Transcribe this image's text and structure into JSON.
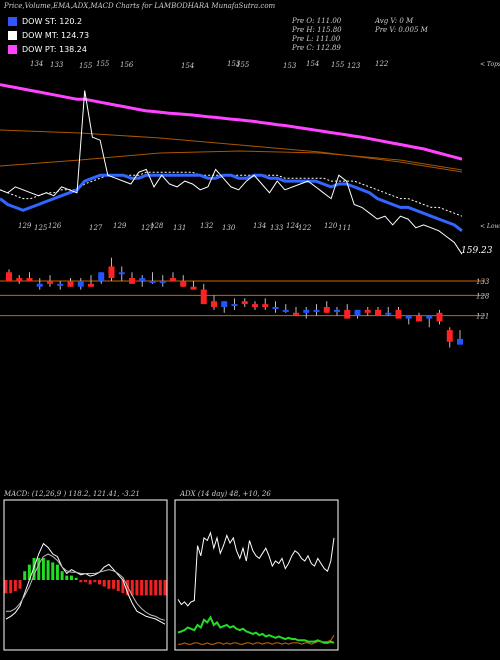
{
  "header": {
    "title": "Price,Volume,EMA,ADX,MACD Charts for LAMBODHARA MunafaSutra.com"
  },
  "legend": [
    {
      "label": "DOW ST: 120.2",
      "color": "#3355ff"
    },
    {
      "label": "DOW MT: 124.73",
      "color": "#ffffff"
    },
    {
      "label": "DOW PT: 138.24",
      "color": "#ff44ff"
    }
  ],
  "ohlc_info": {
    "open": "Pre  O: 111.00",
    "high": "Pre  H: 115.80",
    "low": "Pre  L: 111.00",
    "close": "Pre  C: 112.89",
    "avg_vol": "Avg V: 0  M",
    "pre_vol": "Pre  V: 0.005 M"
  },
  "colors": {
    "up": "#2255ff",
    "down": "#ff2222",
    "level_line": "#cc6600",
    "ema_pt": "#ff44ff",
    "ema_mt": "#ffffff",
    "ema_st": "#3366ff",
    "macd_green": "#22dd22",
    "macd_red": "#ee2222",
    "adx_green": "#22dd22",
    "adx_orange": "#cc6600"
  },
  "chart_data": [
    {
      "type": "line",
      "name": "price-ema-panel",
      "corner_labels": {
        "top": "< Tops",
        "bottom": "< Lows"
      },
      "top_labels": [
        "134",
        "133",
        "155",
        "155",
        "156",
        "154",
        "153",
        "155",
        "153",
        "154",
        "155",
        "123",
        "122"
      ],
      "bottom_labels": [
        "129",
        "125",
        "126",
        "127",
        "129",
        "127",
        "128",
        "131",
        "132",
        "130",
        "134",
        "133",
        "124",
        "122",
        "120",
        "111"
      ],
      "series": [
        {
          "name": "price",
          "values": [
            134,
            133,
            135,
            134,
            133,
            132,
            133,
            132,
            135,
            134,
            133,
            168,
            152,
            151,
            139,
            138,
            137,
            136,
            140,
            141,
            135,
            139,
            136,
            135,
            137,
            136,
            134,
            135,
            141,
            138,
            135,
            134,
            137,
            139,
            136,
            133,
            137,
            134,
            135,
            136,
            137,
            135,
            133,
            131,
            139,
            137,
            129,
            128,
            126,
            124,
            125,
            122,
            125,
            124,
            121,
            122,
            121,
            120,
            118,
            116,
            112
          ]
        },
        {
          "name": "ema_st",
          "values": [
            131,
            129,
            128,
            127,
            128,
            129,
            130,
            131,
            132,
            133,
            134,
            137,
            138,
            139,
            139,
            139,
            139,
            138,
            138,
            139,
            139,
            139,
            139,
            139,
            139,
            139,
            139,
            138,
            138,
            139,
            139,
            138,
            138,
            139,
            139,
            138,
            138,
            137,
            137,
            137,
            137,
            137,
            136,
            135,
            136,
            136,
            135,
            134,
            133,
            131,
            130,
            129,
            128,
            128,
            127,
            126,
            125,
            124,
            123,
            122,
            120
          ]
        },
        {
          "name": "ema_mt",
          "values": [
            134,
            133,
            132,
            131,
            131,
            132,
            133,
            133,
            134,
            134,
            134,
            136,
            137,
            138,
            139,
            139,
            139,
            139,
            139,
            140,
            140,
            140,
            140,
            140,
            140,
            140,
            139,
            139,
            139,
            139,
            139,
            139,
            139,
            139,
            139,
            139,
            139,
            138,
            138,
            138,
            138,
            138,
            138,
            137,
            137,
            137,
            137,
            136,
            135,
            134,
            133,
            132,
            131,
            131,
            130,
            129,
            128,
            128,
            127,
            126,
            125
          ]
        },
        {
          "name": "ema_pt",
          "values": [
            170,
            169.5,
            169,
            168.5,
            168,
            167.5,
            167,
            166.5,
            166,
            165.5,
            165,
            165,
            164.5,
            164,
            163.5,
            163,
            162.5,
            162,
            161.5,
            161,
            160.8,
            160.5,
            160.2,
            160,
            159.8,
            159.6,
            159.3,
            159,
            158.8,
            158.5,
            158.2,
            158,
            157.7,
            157.4,
            157,
            156.7,
            156.3,
            156,
            155.6,
            155.2,
            154.8,
            154.4,
            154,
            153.6,
            153.2,
            152.8,
            152.4,
            152,
            151.5,
            151,
            150.5,
            150,
            149.5,
            149,
            148.5,
            148,
            147.3,
            146.6,
            145.9,
            145.2,
            144.5
          ]
        }
      ],
      "current_value": "159.23",
      "ylim": [
        110,
        175
      ]
    },
    {
      "type": "candlestick",
      "name": "daily-candles",
      "level_labels": [
        "133",
        "128",
        "121"
      ],
      "candles": [
        {
          "o": 136,
          "h": 137,
          "l": 133,
          "c": 133
        },
        {
          "o": 134,
          "h": 135,
          "l": 132,
          "c": 133
        },
        {
          "o": 134,
          "h": 136,
          "l": 133,
          "c": 133
        },
        {
          "o": 131,
          "h": 134,
          "l": 130,
          "c": 132
        },
        {
          "o": 133,
          "h": 135,
          "l": 131,
          "c": 132
        },
        {
          "o": 132,
          "h": 133,
          "l": 130,
          "c": 132
        },
        {
          "o": 133,
          "h": 134,
          "l": 131,
          "c": 131
        },
        {
          "o": 131,
          "h": 134,
          "l": 130,
          "c": 133
        },
        {
          "o": 132,
          "h": 135,
          "l": 131,
          "c": 131
        },
        {
          "o": 133,
          "h": 136,
          "l": 132,
          "c": 136
        },
        {
          "o": 138,
          "h": 141,
          "l": 133,
          "c": 134
        },
        {
          "o": 136,
          "h": 138,
          "l": 133,
          "c": 136
        },
        {
          "o": 134,
          "h": 136,
          "l": 132,
          "c": 132
        },
        {
          "o": 133,
          "h": 135,
          "l": 131,
          "c": 134
        },
        {
          "o": 133,
          "h": 136,
          "l": 132,
          "c": 133
        },
        {
          "o": 133,
          "h": 135,
          "l": 131,
          "c": 133
        },
        {
          "o": 134,
          "h": 136,
          "l": 133,
          "c": 133
        },
        {
          "o": 133,
          "h": 135,
          "l": 131,
          "c": 131
        },
        {
          "o": 131,
          "h": 133,
          "l": 130,
          "c": 130
        },
        {
          "o": 130,
          "h": 132,
          "l": 125,
          "c": 125
        },
        {
          "o": 126,
          "h": 128,
          "l": 123,
          "c": 124
        },
        {
          "o": 124,
          "h": 126,
          "l": 122,
          "c": 126
        },
        {
          "o": 125,
          "h": 127,
          "l": 123,
          "c": 125
        },
        {
          "o": 126,
          "h": 127,
          "l": 124,
          "c": 125
        },
        {
          "o": 125,
          "h": 126,
          "l": 123,
          "c": 124
        },
        {
          "o": 125,
          "h": 127,
          "l": 123,
          "c": 124
        },
        {
          "o": 124,
          "h": 126,
          "l": 122,
          "c": 124
        },
        {
          "o": 123,
          "h": 125,
          "l": 122,
          "c": 123
        },
        {
          "o": 122,
          "h": 124,
          "l": 121,
          "c": 121
        },
        {
          "o": 122,
          "h": 124,
          "l": 120,
          "c": 123
        },
        {
          "o": 123,
          "h": 125,
          "l": 121,
          "c": 123
        },
        {
          "o": 124,
          "h": 126,
          "l": 122,
          "c": 122
        },
        {
          "o": 123,
          "h": 124,
          "l": 121,
          "c": 123
        },
        {
          "o": 123,
          "h": 125,
          "l": 120,
          "c": 120
        },
        {
          "o": 121,
          "h": 123,
          "l": 120,
          "c": 123
        },
        {
          "o": 123,
          "h": 124,
          "l": 121,
          "c": 122
        },
        {
          "o": 123,
          "h": 124,
          "l": 121,
          "c": 121
        },
        {
          "o": 122,
          "h": 124,
          "l": 121,
          "c": 122
        },
        {
          "o": 123,
          "h": 124,
          "l": 120,
          "c": 120
        },
        {
          "o": 120,
          "h": 121,
          "l": 118,
          "c": 121
        },
        {
          "o": 121,
          "h": 122,
          "l": 119,
          "c": 119
        },
        {
          "o": 120,
          "h": 121,
          "l": 117,
          "c": 121
        },
        {
          "o": 122,
          "h": 123,
          "l": 118,
          "c": 119
        },
        {
          "o": 116,
          "h": 117,
          "l": 110,
          "c": 112
        },
        {
          "o": 111,
          "h": 116,
          "l": 111,
          "c": 113
        }
      ],
      "ylim": [
        105,
        143
      ]
    },
    {
      "type": "line",
      "name": "macd-panel",
      "title": "MACD: (12,26,9 ) 118.2,  121.41,  -3.21",
      "series": [
        {
          "name": "macd",
          "values": [
            -30,
            -28,
            -25,
            -20,
            -10,
            0,
            10,
            20,
            28,
            25,
            20,
            18,
            10,
            5,
            8,
            6,
            4,
            5,
            3,
            4,
            6,
            10,
            12,
            8,
            4,
            0,
            -10,
            -18,
            -24,
            -26,
            -28,
            -29,
            -30,
            -32,
            -34
          ]
        },
        {
          "name": "signal",
          "values": [
            -24,
            -24,
            -22,
            -18,
            -12,
            -5,
            4,
            12,
            18,
            20,
            18,
            15,
            10,
            7,
            6,
            6,
            5,
            5,
            5,
            5,
            6,
            7,
            8,
            7,
            5,
            2,
            -5,
            -12,
            -18,
            -22,
            -25,
            -27,
            -28,
            -30,
            -31
          ]
        },
        {
          "name": "histogram",
          "values": [
            -6,
            -6,
            -5,
            -4,
            4,
            7,
            10,
            10,
            10,
            9,
            8,
            7,
            4,
            2,
            2,
            1,
            -1,
            -1,
            -2,
            -1,
            -2,
            -3,
            -4,
            -4,
            -5,
            -6,
            -7,
            -7,
            -7,
            -7,
            -7,
            -7,
            -7,
            -7,
            -7
          ]
        }
      ]
    },
    {
      "type": "line",
      "name": "adx-panel",
      "title": "ADX                  (14  day) 48,  +10,  26",
      "series": [
        {
          "name": "adx",
          "values": [
            38,
            34,
            36,
            33,
            36,
            37,
            80,
            72,
            86,
            84,
            90,
            78,
            86,
            74,
            80,
            88,
            82,
            86,
            76,
            70,
            78,
            68,
            84,
            76,
            72,
            70,
            74,
            78,
            72,
            64,
            68,
            66,
            70,
            62,
            66,
            72,
            76,
            74,
            70,
            68,
            72,
            66,
            64,
            70,
            66,
            62,
            60,
            68,
            86
          ]
        },
        {
          "name": "plus_di",
          "values": [
            12,
            13,
            14,
            16,
            15,
            14,
            18,
            16,
            22,
            20,
            24,
            18,
            20,
            16,
            17,
            18,
            16,
            17,
            15,
            14,
            15,
            13,
            12,
            11,
            12,
            10,
            11,
            9,
            10,
            9,
            8,
            9,
            8,
            7,
            8,
            7,
            7,
            6,
            6,
            6,
            5,
            5,
            5,
            6,
            5,
            4,
            4,
            5,
            4
          ]
        },
        {
          "name": "minus_di",
          "values": [
            3,
            3,
            4,
            3,
            3,
            4,
            4,
            3,
            3,
            4,
            3,
            3,
            4,
            4,
            3,
            4,
            3,
            4,
            4,
            3,
            3,
            4,
            4,
            3,
            4,
            4,
            3,
            4,
            4,
            3,
            4,
            4,
            3,
            4,
            3,
            4,
            4,
            4,
            3,
            4,
            4,
            3,
            4,
            5,
            5,
            5,
            5,
            6,
            10
          ]
        }
      ],
      "ylim": [
        0,
        100
      ]
    }
  ]
}
